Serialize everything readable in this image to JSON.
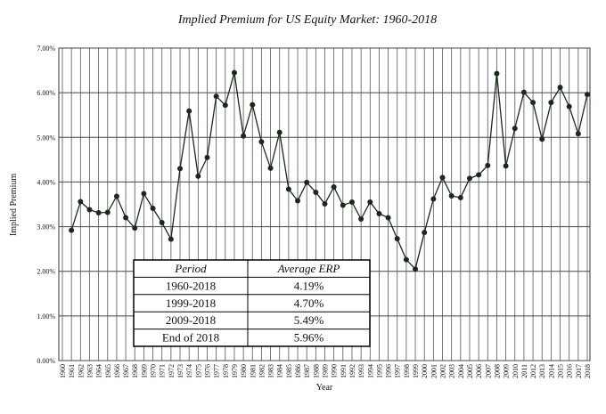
{
  "chart_data": {
    "type": "line",
    "title": "Implied Premium for US Equity Market: 1960-2018",
    "y_label": "Implied Premium",
    "x_label": "Year",
    "categories": [
      "1960",
      "1961",
      "1962",
      "1963",
      "1964",
      "1965",
      "1966",
      "1967",
      "1968",
      "1969",
      "1970",
      "1971",
      "1972",
      "1973",
      "1974",
      "1975",
      "1976",
      "1977",
      "1978",
      "1979",
      "1980",
      "1981",
      "1982",
      "1983",
      "1984",
      "1985",
      "1986",
      "1987",
      "1988",
      "1989",
      "1990",
      "1991",
      "1992",
      "1993",
      "1994",
      "1995",
      "1996",
      "1997",
      "1998",
      "1999",
      "2000",
      "2001",
      "2002",
      "2003",
      "2004",
      "2005",
      "2006",
      "2007",
      "2008",
      "2009",
      "2010",
      "2011",
      "2012",
      "2013",
      "2014",
      "2015",
      "2016",
      "2017",
      "2018"
    ],
    "values": [
      null,
      2.92,
      3.56,
      3.38,
      3.31,
      3.32,
      3.68,
      3.2,
      2.97,
      3.74,
      3.41,
      3.09,
      2.72,
      4.3,
      5.59,
      4.13,
      4.55,
      5.92,
      5.72,
      6.45,
      5.03,
      5.73,
      4.9,
      4.31,
      5.11,
      3.84,
      3.58,
      3.99,
      3.77,
      3.51,
      3.89,
      3.48,
      3.55,
      3.17,
      3.55,
      3.29,
      3.2,
      2.73,
      2.26,
      2.05,
      2.87,
      3.62,
      4.1,
      3.69,
      3.65,
      4.08,
      4.16,
      4.37,
      6.43,
      4.36,
      5.2,
      6.01,
      5.78,
      4.96,
      5.78,
      6.12,
      5.69,
      5.08,
      5.96
    ],
    "color": "#1a2a1a",
    "ylim": [
      0,
      7
    ],
    "yticks": [
      {
        "value": 0,
        "label": "0.00%"
      },
      {
        "value": 1,
        "label": "1.00%"
      },
      {
        "value": 2,
        "label": "2.00%"
      },
      {
        "value": 3,
        "label": "3.00%"
      },
      {
        "value": 4,
        "label": "4.00%"
      },
      {
        "value": 5,
        "label": "5.00%"
      },
      {
        "value": 6,
        "label": "6.00%"
      },
      {
        "value": 7,
        "label": "7.00%"
      }
    ],
    "grid": true,
    "table": {
      "header": [
        "Period",
        "Average ERP"
      ],
      "rows": [
        [
          "1960-2018",
          "4.19%"
        ],
        [
          "1999-2018",
          "4.70%"
        ],
        [
          "2009-2018",
          "5.49%"
        ],
        [
          "End of 2018",
          "5.96%"
        ]
      ]
    }
  }
}
